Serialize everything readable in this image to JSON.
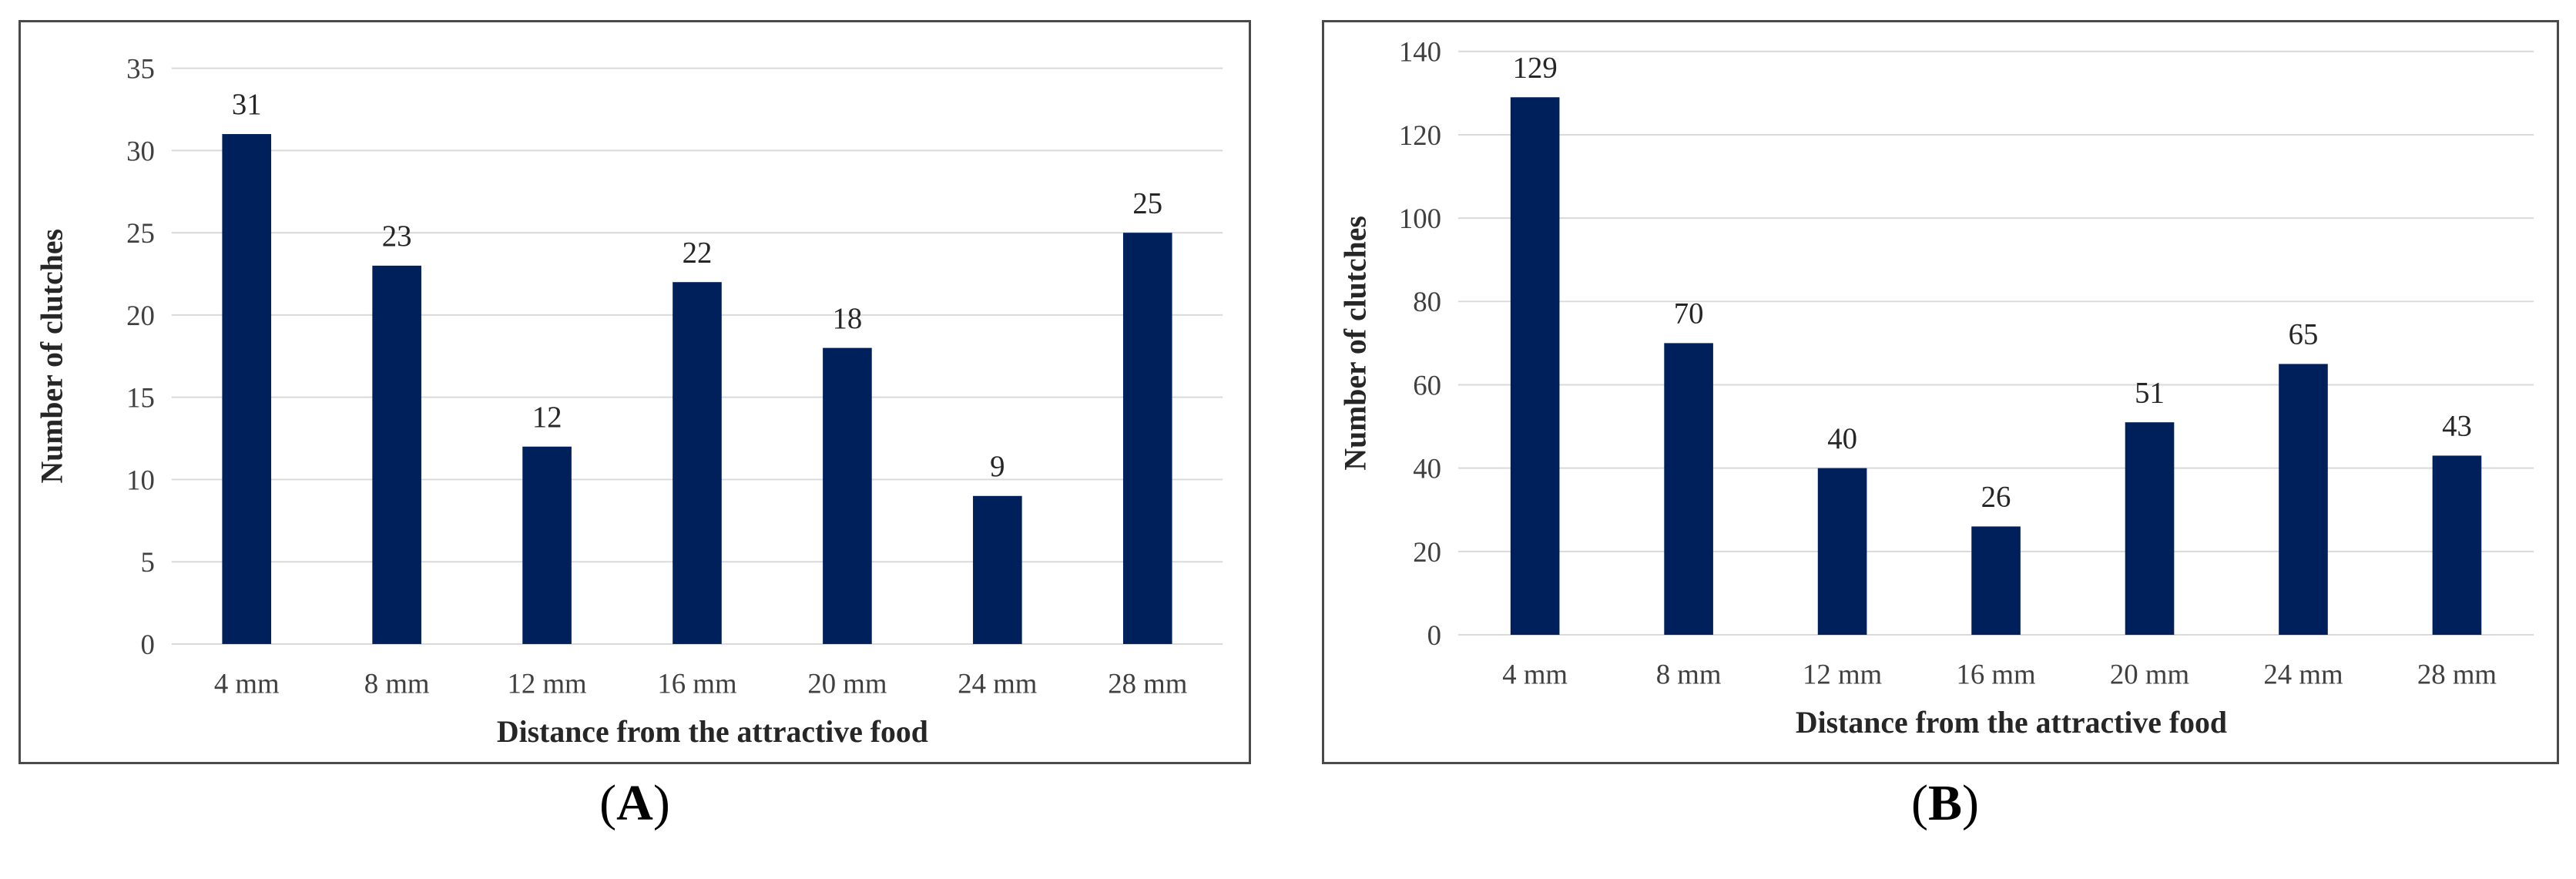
{
  "colors": {
    "bar": "#00205b",
    "grid": "#d9d9d9",
    "border": "#4a4a4a"
  },
  "chart_data": [
    {
      "type": "bar",
      "panel_label": "A",
      "categories": [
        "4 mm",
        "8 mm",
        "12 mm",
        "16 mm",
        "20 mm",
        "24 mm",
        "28 mm"
      ],
      "values": [
        31,
        23,
        12,
        22,
        18,
        9,
        25
      ],
      "xlabel": "Distance from the attractive food",
      "ylabel": "Number of clutches",
      "ylim": [
        0,
        35
      ],
      "yticks": [
        0,
        5,
        10,
        15,
        20,
        25,
        30,
        35
      ],
      "grid": true
    },
    {
      "type": "bar",
      "panel_label": "B",
      "categories": [
        "4 mm",
        "8 mm",
        "12 mm",
        "16 mm",
        "20 mm",
        "24 mm",
        "28 mm"
      ],
      "values": [
        129,
        70,
        40,
        26,
        51,
        65,
        43
      ],
      "xlabel": "Distance from the attractive food",
      "ylabel": "Number of clutches",
      "ylim": [
        0,
        140
      ],
      "yticks": [
        0,
        20,
        40,
        60,
        80,
        100,
        120,
        140
      ],
      "grid": true
    }
  ]
}
